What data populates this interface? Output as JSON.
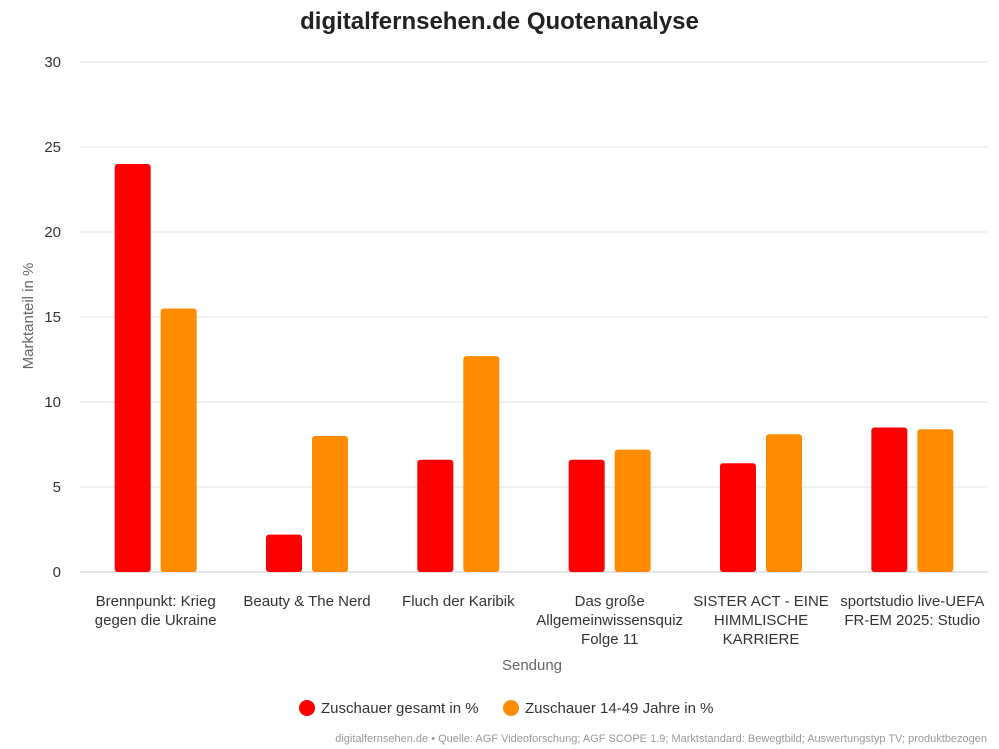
{
  "chart_data": {
    "type": "bar",
    "title": "digitalfernsehen.de Quotenanalyse",
    "xlabel": "Sendung",
    "ylabel": "Marktanteil in %",
    "ylim": [
      0,
      30
    ],
    "yticks": [
      0,
      5,
      10,
      15,
      20,
      25,
      30
    ],
    "grid": true,
    "legend_position": "bottom",
    "categories": [
      [
        "Brennpunkt: Krieg",
        "gegen die Ukraine"
      ],
      [
        "Beauty & The Nerd"
      ],
      [
        "Fluch der Karibik"
      ],
      [
        "Das große",
        "Allgemeinwissensquiz",
        "Folge 11"
      ],
      [
        "SISTER ACT - EINE",
        "HIMMLISCHE",
        "KARRIERE"
      ],
      [
        "sportstudio live-UEFA",
        "FR-EM 2025: Studio"
      ]
    ],
    "series": [
      {
        "name": "Zuschauer gesamt in %",
        "color": "#ff0000",
        "values": [
          24.0,
          2.2,
          6.6,
          6.6,
          6.4,
          8.5
        ]
      },
      {
        "name": "Zuschauer 14-49 Jahre in %",
        "color": "#ff8c00",
        "values": [
          15.5,
          8.0,
          12.7,
          7.2,
          8.1,
          8.4
        ]
      }
    ]
  },
  "footer": {
    "source": "digitalfernsehen.de • Quelle: AGF Videoforschung; AGF SCOPE 1.9; Marktstandard: Bewegtbild; Auswertungstyp TV; produktbezogen"
  }
}
